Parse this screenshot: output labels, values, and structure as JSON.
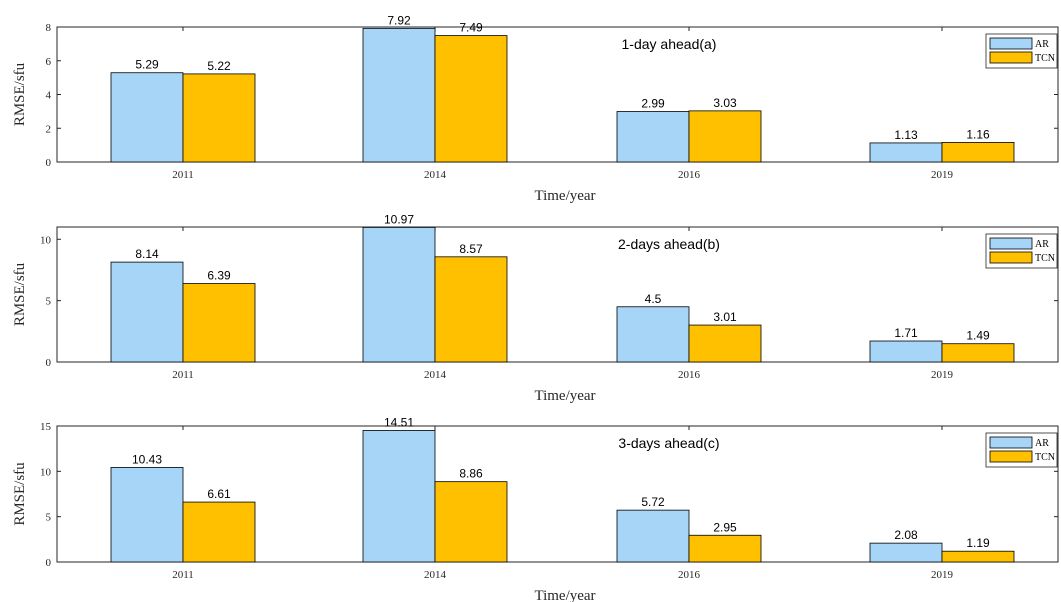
{
  "figure": {
    "colors": {
      "AR": "#a6d5f7",
      "TCN": "#ffc000",
      "axis": "#262626",
      "bar_edge": "#000000"
    }
  },
  "chart_data": [
    {
      "type": "bar",
      "title": "1-day ahead(a)",
      "xlabel": "Time/year",
      "ylabel": "RMSE/sfu",
      "categories": [
        "2011",
        "2014",
        "2016",
        "2019"
      ],
      "series": [
        {
          "name": "AR",
          "values": [
            5.29,
            7.92,
            2.99,
            1.13
          ]
        },
        {
          "name": "TCN",
          "values": [
            5.22,
            7.49,
            3.03,
            1.16
          ]
        }
      ],
      "data_labels": {
        "AR": [
          "5.29",
          "7.92",
          "2.99",
          "1.13"
        ],
        "TCN": [
          "5.22",
          "7.49",
          "3.03",
          "1.16"
        ]
      },
      "ylim": [
        0,
        8
      ],
      "yticks": [
        "0",
        "2",
        "4",
        "6",
        "8"
      ],
      "yticks_values": [
        0,
        2,
        4,
        6,
        8
      ],
      "legend": "top-right",
      "grid": false
    },
    {
      "type": "bar",
      "title": "2-days ahead(b)",
      "xlabel": "Time/year",
      "ylabel": "RMSE/sfu",
      "categories": [
        "2011",
        "2014",
        "2016",
        "2019"
      ],
      "series": [
        {
          "name": "AR",
          "values": [
            8.14,
            10.97,
            4.5,
            1.71
          ]
        },
        {
          "name": "TCN",
          "values": [
            6.39,
            8.57,
            3.01,
            1.49
          ]
        }
      ],
      "data_labels": {
        "AR": [
          "8.14",
          "10.97",
          "4.5",
          "1.71"
        ],
        "TCN": [
          "6.39",
          "8.57",
          "3.01",
          "1.49"
        ]
      },
      "ylim": [
        0,
        11
      ],
      "yticks": [
        "0",
        "5",
        "10"
      ],
      "yticks_values": [
        0,
        5,
        10
      ],
      "legend": "top-right",
      "grid": false
    },
    {
      "type": "bar",
      "title": "3-days ahead(c)",
      "xlabel": "Time/year",
      "ylabel": "RMSE/sfu",
      "categories": [
        "2011",
        "2014",
        "2016",
        "2019"
      ],
      "series": [
        {
          "name": "AR",
          "values": [
            10.43,
            14.51,
            5.72,
            2.08
          ]
        },
        {
          "name": "TCN",
          "values": [
            6.61,
            8.86,
            2.95,
            1.19
          ]
        }
      ],
      "data_labels": {
        "AR": [
          "10.43",
          "14.51",
          "5.72",
          "2.08"
        ],
        "TCN": [
          "6.61",
          "8.86",
          "2.95",
          "1.19"
        ]
      },
      "ylim": [
        0,
        15
      ],
      "yticks": [
        "0",
        "5",
        "10",
        "15"
      ],
      "yticks_values": [
        0,
        5,
        10,
        15
      ],
      "legend": "top-right",
      "grid": false
    }
  ]
}
